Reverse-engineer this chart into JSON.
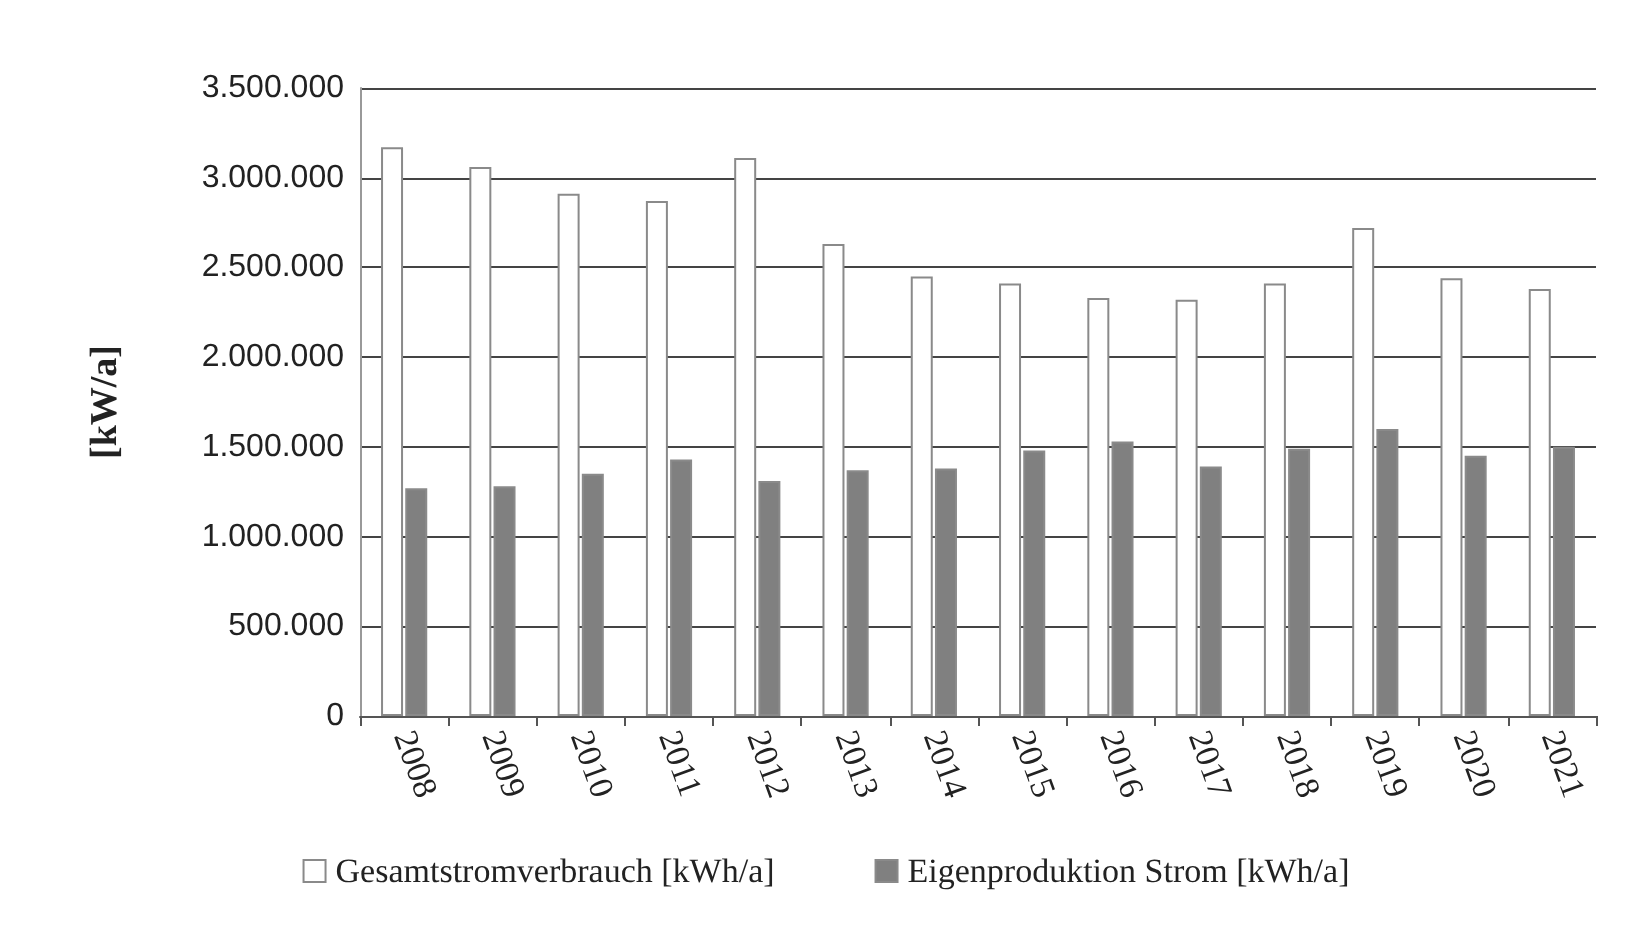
{
  "chart_data": {
    "type": "bar",
    "ylabel": "[kW/a]",
    "categories": [
      "2008",
      "2009",
      "2010",
      "2011",
      "2012",
      "2013",
      "2014",
      "2015",
      "2016",
      "2017",
      "2018",
      "2019",
      "2020",
      "2021"
    ],
    "series": [
      {
        "name": "Gesamtstromverbrauch [kWh/a]",
        "color": "#ffffff",
        "values": [
          3170000,
          3060000,
          2910000,
          2870000,
          3110000,
          2630000,
          2450000,
          2410000,
          2330000,
          2320000,
          2410000,
          2720000,
          2440000,
          2380000
        ]
      },
      {
        "name": "Eigenproduktion Strom [kWh/a]",
        "color": "#808080",
        "values": [
          1270000,
          1280000,
          1350000,
          1430000,
          1310000,
          1370000,
          1380000,
          1480000,
          1530000,
          1390000,
          1490000,
          1600000,
          1450000,
          1500000
        ]
      }
    ],
    "ylim": [
      0,
      3500000
    ],
    "yticks": [
      {
        "value": 0,
        "label": "0"
      },
      {
        "value": 500000,
        "label": "500.000"
      },
      {
        "value": 1000000,
        "label": "1.000.000"
      },
      {
        "value": 1500000,
        "label": "1.500.000"
      },
      {
        "value": 2000000,
        "label": "2.000.000"
      },
      {
        "value": 2500000,
        "label": "2.500.000"
      },
      {
        "value": 3000000,
        "label": "3.000.000"
      },
      {
        "value": 3500000,
        "label": "3.500.000"
      }
    ],
    "grid": "y",
    "legend": "bottom"
  }
}
